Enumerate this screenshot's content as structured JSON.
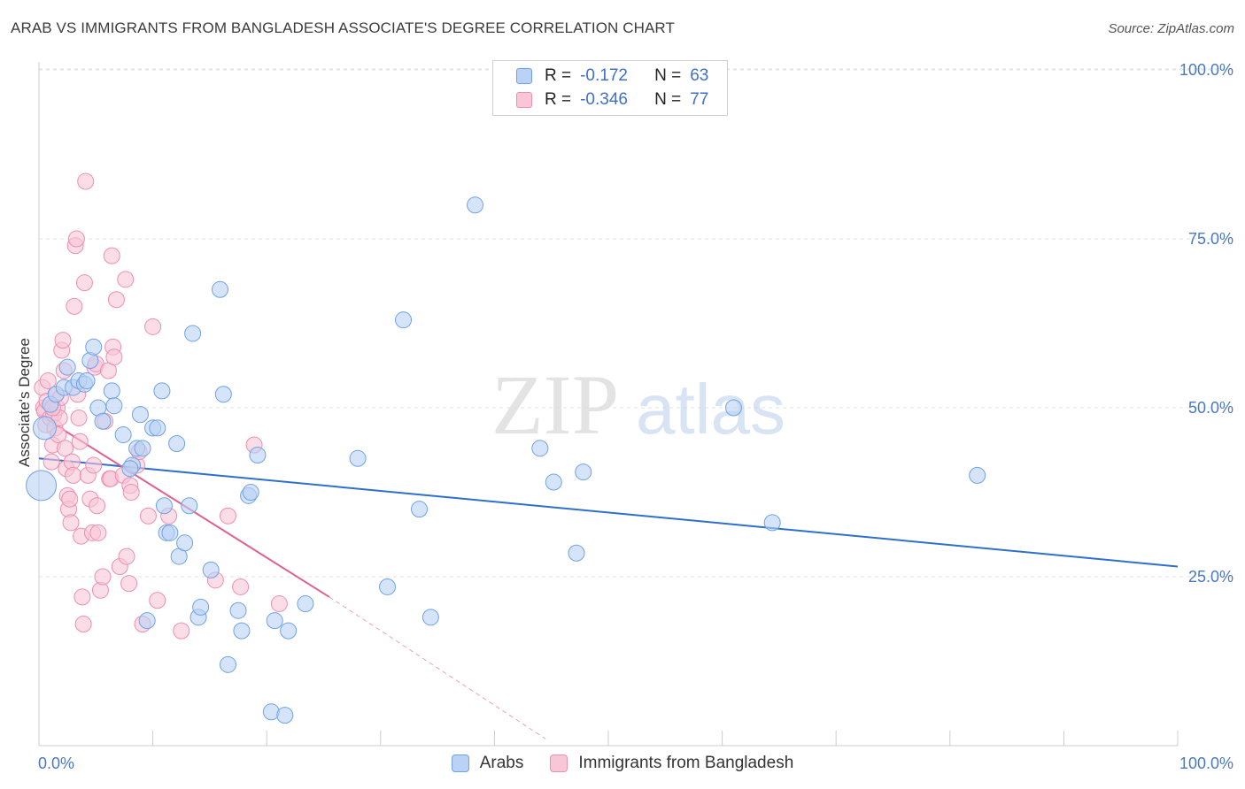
{
  "header": {
    "title": "ARAB VS IMMIGRANTS FROM BANGLADESH ASSOCIATE'S DEGREE CORRELATION CHART",
    "source": "Source: ZipAtlas.com"
  },
  "colors": {
    "blue": "#6fa2e8",
    "blue_fill": "#b9d2f5",
    "blue_line": "#2f6fcc",
    "pink": "#ee8fb0",
    "pink_fill": "#f8c6d7",
    "pink_line": "#e0608f"
  },
  "legend": {
    "rows": [
      {
        "r_label": "R =",
        "r_value": "-0.172",
        "n_label": "N =",
        "n_value": "63"
      },
      {
        "r_label": "R =",
        "r_value": "-0.346",
        "n_label": "N =",
        "n_value": "77"
      }
    ]
  },
  "bottom_legend": {
    "series1": "Arabs",
    "series2": "Immigrants from Bangladesh"
  },
  "watermark": {
    "zip": "ZIP",
    "atlas": "atlas"
  },
  "chart_data": {
    "type": "scatter",
    "title": "ARAB VS IMMIGRANTS FROM BANGLADESH ASSOCIATE'S DEGREE CORRELATION CHART",
    "ylabel": "Associate's Degree",
    "xlabel": "",
    "xlim": [
      0,
      100
    ],
    "ylim": [
      0,
      105
    ],
    "x_tick_labels": [
      "0.0%",
      "100.0%"
    ],
    "y_ticks": [
      25,
      50,
      75,
      100
    ],
    "y_tick_labels": [
      "25.0%",
      "50.0%",
      "75.0%",
      "100.0%"
    ],
    "series": [
      {
        "name": "Arabs",
        "r": -0.172,
        "n": 63,
        "trend": {
          "x0": 0,
          "y0": 42.5,
          "x1": 100,
          "y1": 26.5
        },
        "points": [
          [
            0.2,
            38.5
          ],
          [
            0.5,
            47
          ],
          [
            1,
            50.5
          ],
          [
            1.5,
            52
          ],
          [
            2.2,
            53
          ],
          [
            2.5,
            56
          ],
          [
            3,
            53
          ],
          [
            3.5,
            54
          ],
          [
            4,
            53.5
          ],
          [
            4.2,
            54
          ],
          [
            4.5,
            57
          ],
          [
            4.8,
            59
          ],
          [
            5.2,
            50
          ],
          [
            5.6,
            48
          ],
          [
            6.4,
            52.5
          ],
          [
            6.6,
            50.3
          ],
          [
            7.4,
            46
          ],
          [
            8.2,
            41.5
          ],
          [
            8.6,
            44
          ],
          [
            8.9,
            49
          ],
          [
            9.1,
            44
          ],
          [
            10,
            47
          ],
          [
            10.4,
            47
          ],
          [
            10.8,
            52.5
          ],
          [
            11,
            35.5
          ],
          [
            11.2,
            31.5
          ],
          [
            11.5,
            31.5
          ],
          [
            12.1,
            44.7
          ],
          [
            12.3,
            28
          ],
          [
            12.8,
            30
          ],
          [
            13.2,
            35.5
          ],
          [
            13.5,
            61
          ],
          [
            14,
            19
          ],
          [
            14.2,
            20.5
          ],
          [
            15.1,
            26
          ],
          [
            15.9,
            67.5
          ],
          [
            16.2,
            52
          ],
          [
            16.6,
            12
          ],
          [
            17.5,
            20
          ],
          [
            17.8,
            17
          ],
          [
            18.4,
            37
          ],
          [
            18.6,
            37.5
          ],
          [
            19.2,
            43
          ],
          [
            20.4,
            5
          ],
          [
            20.7,
            18.5
          ],
          [
            21.6,
            4.5
          ],
          [
            21.9,
            17
          ],
          [
            23.4,
            21
          ],
          [
            28,
            42.5
          ],
          [
            30.6,
            23.5
          ],
          [
            32,
            63
          ],
          [
            33.4,
            35
          ],
          [
            34.4,
            19
          ],
          [
            38.3,
            80
          ],
          [
            44,
            44
          ],
          [
            45.2,
            39
          ],
          [
            47.2,
            28.5
          ],
          [
            47.8,
            40.5
          ],
          [
            61,
            50
          ],
          [
            64.4,
            33
          ],
          [
            82.4,
            40
          ],
          [
            9.5,
            18.5
          ],
          [
            8,
            41
          ]
        ]
      },
      {
        "name": "Immigrants from Bangladesh",
        "r": -0.346,
        "n": 77,
        "trend": {
          "x0": 0,
          "y0": 49,
          "x1": 25.5,
          "y1": 22,
          "dash_x1": 44.5,
          "dash_y1": 1
        },
        "points": [
          [
            0.3,
            53
          ],
          [
            0.4,
            50
          ],
          [
            0.5,
            49.5
          ],
          [
            0.6,
            47.5
          ],
          [
            0.7,
            51
          ],
          [
            0.8,
            54
          ],
          [
            1,
            48.5
          ],
          [
            1.1,
            42
          ],
          [
            1.2,
            44.5
          ],
          [
            1.3,
            49
          ],
          [
            1.4,
            47
          ],
          [
            1.5,
            52
          ],
          [
            1.6,
            50
          ],
          [
            1.7,
            46
          ],
          [
            1.8,
            48.5
          ],
          [
            1.9,
            51.5
          ],
          [
            2,
            58.5
          ],
          [
            2.1,
            60
          ],
          [
            2.2,
            55.5
          ],
          [
            2.3,
            44
          ],
          [
            2.4,
            41
          ],
          [
            2.5,
            37
          ],
          [
            2.6,
            35
          ],
          [
            2.7,
            36.5
          ],
          [
            2.8,
            33
          ],
          [
            2.9,
            42
          ],
          [
            3,
            40
          ],
          [
            3.1,
            65
          ],
          [
            3.2,
            74
          ],
          [
            3.3,
            75
          ],
          [
            3.4,
            52
          ],
          [
            3.5,
            48.5
          ],
          [
            3.6,
            45
          ],
          [
            3.7,
            31
          ],
          [
            3.8,
            22
          ],
          [
            3.9,
            18
          ],
          [
            4,
            68.5
          ],
          [
            4.1,
            83.5
          ],
          [
            4.3,
            40
          ],
          [
            4.5,
            36.5
          ],
          [
            4.7,
            31.5
          ],
          [
            4.8,
            41.5
          ],
          [
            4.9,
            56
          ],
          [
            5,
            56.5
          ],
          [
            5.1,
            35.5
          ],
          [
            5.2,
            31.5
          ],
          [
            5.4,
            23
          ],
          [
            5.6,
            25
          ],
          [
            5.8,
            48
          ],
          [
            6.1,
            55.5
          ],
          [
            6.2,
            39.5
          ],
          [
            6.3,
            39.5
          ],
          [
            6.4,
            72.5
          ],
          [
            6.5,
            59
          ],
          [
            6.6,
            57.5
          ],
          [
            6.8,
            66
          ],
          [
            7.1,
            26.5
          ],
          [
            7.4,
            40
          ],
          [
            7.6,
            69
          ],
          [
            7.7,
            28
          ],
          [
            7.9,
            24
          ],
          [
            8,
            38.5
          ],
          [
            8.1,
            37.5
          ],
          [
            8.6,
            41.5
          ],
          [
            8.8,
            43.5
          ],
          [
            9.1,
            18
          ],
          [
            9.6,
            34
          ],
          [
            10,
            62
          ],
          [
            10.4,
            21.5
          ],
          [
            11.4,
            34
          ],
          [
            12.5,
            17
          ],
          [
            15.5,
            24.5
          ],
          [
            16.6,
            34
          ],
          [
            17.7,
            23.5
          ],
          [
            18.9,
            44.5
          ],
          [
            21.1,
            21
          ],
          [
            1.2,
            50
          ]
        ]
      }
    ]
  }
}
